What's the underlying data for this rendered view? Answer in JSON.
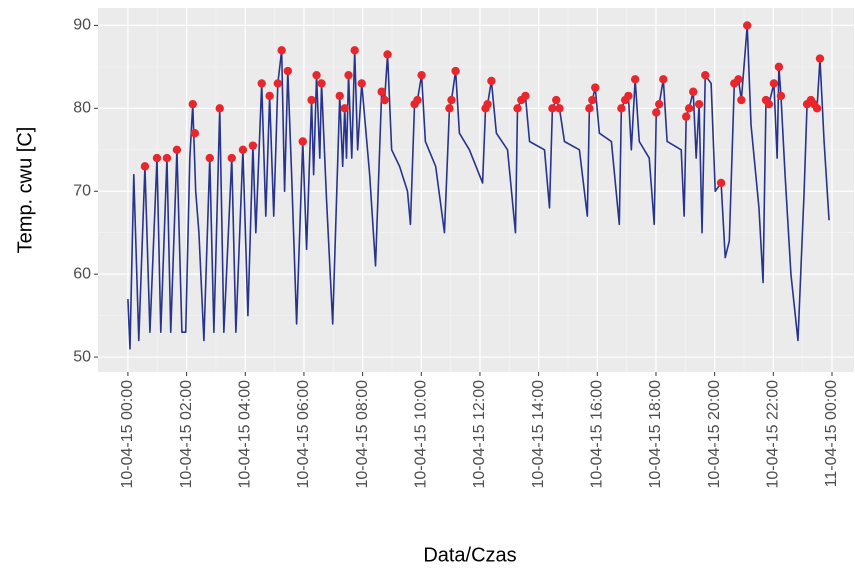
{
  "chart_data": {
    "type": "line",
    "x_label": "Data/Czas",
    "y_label": "Temp. cwu [C]",
    "xlim": [
      -1.02,
      24.75
    ],
    "ylim": [
      48.2,
      92.1
    ],
    "xticks": [
      {
        "value": 0,
        "label": "10-04-15 00:00"
      },
      {
        "value": 2,
        "label": "10-04-15 02:00"
      },
      {
        "value": 4,
        "label": "10-04-15 04:00"
      },
      {
        "value": 6,
        "label": "10-04-15 06:00"
      },
      {
        "value": 8,
        "label": "10-04-15 08:00"
      },
      {
        "value": 10,
        "label": "10-04-15 10:00"
      },
      {
        "value": 12,
        "label": "10-04-15 12:00"
      },
      {
        "value": 14,
        "label": "10-04-15 14:00"
      },
      {
        "value": 16,
        "label": "10-04-15 16:00"
      },
      {
        "value": 18,
        "label": "10-04-15 18:00"
      },
      {
        "value": 20,
        "label": "10-04-15 20:00"
      },
      {
        "value": 22,
        "label": "10-04-15 22:00"
      },
      {
        "value": 24,
        "label": "11-04-15 00:00"
      }
    ],
    "yticks": [
      50,
      60,
      70,
      80,
      90
    ],
    "grid": true,
    "series": [
      {
        "type": "line",
        "color": "#27348b",
        "x": [
          0,
          0.07,
          0.2,
          0.37,
          0.58,
          0.75,
          0.99,
          1.12,
          1.33,
          1.46,
          1.67,
          1.84,
          1.97,
          2.11,
          2.21,
          2.31,
          2.42,
          2.59,
          2.79,
          2.93,
          3.13,
          3.27,
          3.54,
          3.68,
          3.92,
          4.09,
          4.26,
          4.36,
          4.56,
          4.7,
          4.83,
          4.97,
          5.11,
          5.24,
          5.34,
          5.45,
          5.58,
          5.75,
          5.96,
          6.09,
          6.26,
          6.33,
          6.43,
          6.54,
          6.6,
          6.77,
          6.98,
          7.22,
          7.32,
          7.39,
          7.45,
          7.52,
          7.63,
          7.73,
          7.83,
          7.97,
          8.24,
          8.44,
          8.65,
          8.75,
          8.85,
          8.99,
          9.26,
          9.53,
          9.63,
          9.77,
          9.87,
          10.01,
          10.14,
          10.49,
          10.79,
          10.96,
          11.03,
          11.17,
          11.3,
          11.64,
          12.09,
          12.19,
          12.26,
          12.39,
          12.56,
          12.94,
          13.21,
          13.28,
          13.41,
          13.55,
          13.69,
          14.2,
          14.37,
          14.47,
          14.6,
          14.71,
          14.88,
          15.39,
          15.66,
          15.73,
          15.83,
          15.93,
          16.07,
          16.48,
          16.75,
          16.82,
          16.95,
          17.06,
          17.16,
          17.29,
          17.43,
          17.77,
          17.94,
          18.01,
          18.11,
          18.25,
          18.38,
          18.86,
          18.96,
          19.03,
          19.13,
          19.27,
          19.37,
          19.47,
          19.57,
          19.68,
          19.88,
          20.02,
          20.22,
          20.36,
          20.5,
          20.67,
          20.81,
          20.91,
          21.11,
          21.24,
          21.51,
          21.65,
          21.75,
          21.85,
          22.02,
          22.13,
          22.19,
          22.26,
          22.4,
          22.6,
          22.84,
          23.05,
          23.15,
          23.28,
          23.39,
          23.49,
          23.59,
          23.73,
          23.9
        ],
        "values": [
          57,
          51,
          72,
          52,
          73,
          53,
          74,
          53,
          74,
          53,
          75,
          53,
          53,
          74,
          80.5,
          70,
          65,
          52,
          74,
          53,
          80,
          53,
          74,
          53,
          75,
          55,
          75.5,
          65,
          83,
          67,
          81.5,
          67,
          83,
          87,
          70,
          84.5,
          72,
          54,
          76,
          63,
          81,
          72,
          84,
          74,
          83,
          69,
          54,
          81.5,
          73,
          80,
          74,
          84,
          74,
          87,
          75,
          83,
          72,
          61,
          82,
          81,
          86.5,
          75,
          73,
          70,
          66,
          80.5,
          81,
          84,
          76,
          73,
          65,
          80,
          81,
          84.5,
          77,
          75,
          71,
          80,
          80.5,
          83.3,
          77,
          75,
          65,
          80,
          81,
          81.5,
          76,
          75,
          68,
          80,
          81,
          80,
          76,
          75,
          67,
          80,
          81,
          82.5,
          77,
          76,
          66,
          80,
          81,
          81.5,
          75,
          83.5,
          76,
          74,
          66,
          79.5,
          80.5,
          83.5,
          76,
          75,
          67,
          79,
          80,
          82,
          74,
          80.5,
          65,
          84,
          83,
          70,
          71,
          62,
          64,
          83,
          83.5,
          81,
          90,
          78,
          68,
          59,
          81,
          80.5,
          83,
          74,
          85,
          81.5,
          72,
          60,
          52,
          70,
          80.5,
          81,
          80.5,
          80,
          86,
          76,
          66.5
        ]
      },
      {
        "type": "scatter",
        "color": "#e8262b",
        "x": [
          0.58,
          0.99,
          1.33,
          1.67,
          2.21,
          2.28,
          2.79,
          3.13,
          3.54,
          3.92,
          4.26,
          4.56,
          4.83,
          5.11,
          5.24,
          5.45,
          5.96,
          6.26,
          6.43,
          6.6,
          7.22,
          7.39,
          7.52,
          7.73,
          7.97,
          8.65,
          8.75,
          8.85,
          9.77,
          9.87,
          10.01,
          10.96,
          11.03,
          11.17,
          12.19,
          12.26,
          12.39,
          13.28,
          13.41,
          13.55,
          14.47,
          14.6,
          14.71,
          15.73,
          15.83,
          15.93,
          16.82,
          16.95,
          17.06,
          17.29,
          18.01,
          18.11,
          18.25,
          19.03,
          19.13,
          19.27,
          19.47,
          19.68,
          20.22,
          20.67,
          20.81,
          20.91,
          21.11,
          21.75,
          21.85,
          22.02,
          22.19,
          22.26,
          23.15,
          23.28,
          23.39,
          23.49,
          23.59
        ],
        "values": [
          73,
          74,
          74,
          75,
          80.5,
          77,
          74,
          80,
          74,
          75,
          75.5,
          83,
          81.5,
          83,
          87,
          84.5,
          76,
          81,
          84,
          83,
          81.5,
          80,
          84,
          87,
          83,
          82,
          81,
          86.5,
          80.5,
          81,
          84,
          80,
          81,
          84.5,
          80,
          80.5,
          83.3,
          80,
          81,
          81.5,
          80,
          81,
          80,
          80,
          81,
          82.5,
          80,
          81,
          81.5,
          83.5,
          79.5,
          80.5,
          83.5,
          79,
          80,
          82,
          80.5,
          84,
          71,
          83,
          83.5,
          81,
          90,
          81,
          80.5,
          83,
          85,
          81.5,
          80.5,
          81,
          80.5,
          80,
          86
        ]
      }
    ]
  }
}
